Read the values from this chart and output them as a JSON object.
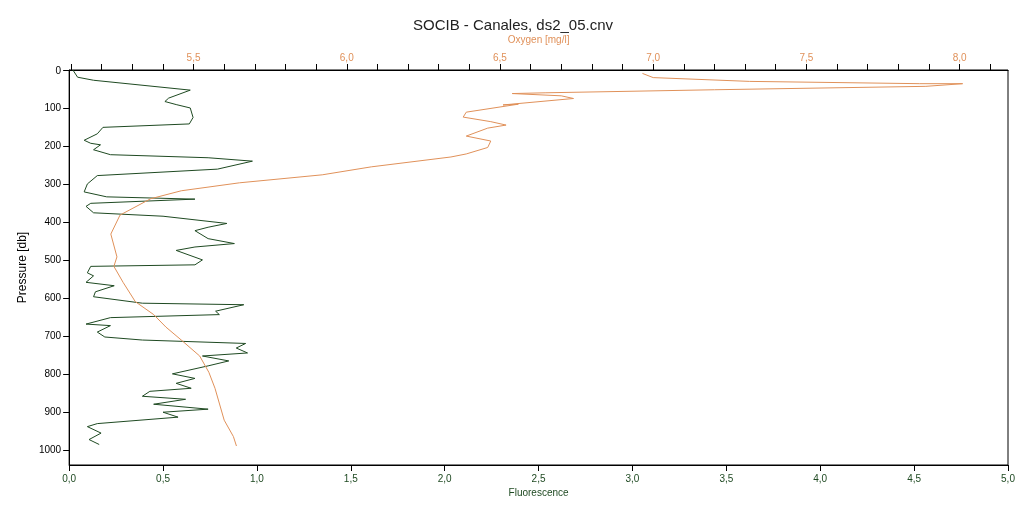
{
  "chart_data": {
    "type": "line",
    "title": "SOCIB - Canales, ds2_05.cnv",
    "xlabel": "Fluorescence",
    "x2label": "Oxygen [mg/l]",
    "ylabel": "Pressure [db]",
    "grid": false,
    "marker": "none",
    "line_style": "solid",
    "xlim": [
      0,
      5
    ],
    "xticks": [
      {
        "value": 0,
        "label": "0,0"
      },
      {
        "value": 0.5,
        "label": "0,5"
      },
      {
        "value": 1,
        "label": "1,0"
      },
      {
        "value": 1.5,
        "label": "1,5"
      },
      {
        "value": 2,
        "label": "2,0"
      },
      {
        "value": 2.5,
        "label": "2,5"
      },
      {
        "value": 3,
        "label": "3,0"
      },
      {
        "value": 3.5,
        "label": "3,5"
      },
      {
        "value": 4,
        "label": "4,0"
      },
      {
        "value": 4.5,
        "label": "4,5"
      },
      {
        "value": 5,
        "label": "5,0"
      }
    ],
    "x2lim": [
      5.094,
      8.158
    ],
    "x2ticks": [
      {
        "value": 5.1,
        "label": null
      },
      {
        "value": 5.2,
        "label": null
      },
      {
        "value": 5.3,
        "label": null
      },
      {
        "value": 5.4,
        "label": null
      },
      {
        "value": 5.5,
        "label": "5,5"
      },
      {
        "value": 5.6,
        "label": null
      },
      {
        "value": 5.7,
        "label": null
      },
      {
        "value": 5.8,
        "label": null
      },
      {
        "value": 5.9,
        "label": null
      },
      {
        "value": 6,
        "label": "6,0"
      },
      {
        "value": 6.1,
        "label": null
      },
      {
        "value": 6.2,
        "label": null
      },
      {
        "value": 6.3,
        "label": null
      },
      {
        "value": 6.4,
        "label": null
      },
      {
        "value": 6.5,
        "label": "6,5"
      },
      {
        "value": 6.6,
        "label": null
      },
      {
        "value": 6.7,
        "label": null
      },
      {
        "value": 6.8,
        "label": null
      },
      {
        "value": 6.9,
        "label": null
      },
      {
        "value": 7,
        "label": "7,0"
      },
      {
        "value": 7.1,
        "label": null
      },
      {
        "value": 7.2,
        "label": null
      },
      {
        "value": 7.3,
        "label": null
      },
      {
        "value": 7.4,
        "label": null
      },
      {
        "value": 7.5,
        "label": "7,5"
      },
      {
        "value": 7.6,
        "label": null
      },
      {
        "value": 7.7,
        "label": null
      },
      {
        "value": 7.8,
        "label": null
      },
      {
        "value": 7.9,
        "label": null
      },
      {
        "value": 8,
        "label": "8,0"
      },
      {
        "value": 8.1,
        "label": null
      }
    ],
    "ylim": [
      1040,
      0
    ],
    "yticks": [
      0,
      100,
      200,
      300,
      400,
      500,
      600,
      700,
      800,
      900,
      1000
    ],
    "series": [
      {
        "color": "#1f4a22",
        "x": [
          0.02,
          0.045,
          0.13,
          0.645,
          0.53,
          0.51,
          0.57,
          0.645,
          0.66,
          0.64,
          0.18,
          0.15,
          0.08,
          0.115,
          0.167,
          0.13,
          0.22,
          0.74,
          0.976,
          0.79,
          0.15,
          0.097,
          0.08,
          0.2,
          0.67,
          0.115,
          0.09,
          0.13,
          0.5,
          0.84,
          0.74,
          0.67,
          0.74,
          0.88,
          0.67,
          0.57,
          0.71,
          0.67,
          0.115,
          0.097,
          0.13,
          0.09,
          0.24,
          0.14,
          0.13,
          0.39,
          0.93,
          0.78,
          0.8,
          0.22,
          0.09,
          0.22,
          0.15,
          0.19,
          0.39,
          0.94,
          0.89,
          0.95,
          0.71,
          0.85,
          0.74,
          0.55,
          0.67,
          0.57,
          0.65,
          0.43,
          0.39,
          0.62,
          0.45,
          0.74,
          0.5,
          0.58,
          0.15,
          0.097,
          0.17,
          0.106,
          0.16
        ],
        "values": [
          0,
          19,
          27,
          53,
          74,
          83,
          91,
          100,
          125,
          142,
          151,
          168,
          185,
          193,
          197,
          210,
          223,
          231,
          240,
          261,
          278,
          300,
          321,
          334,
          340,
          351,
          359,
          376,
          385,
          404,
          414,
          423,
          444,
          457,
          466,
          475,
          500,
          513,
          517,
          534,
          542,
          559,
          568,
          584,
          597,
          614,
          618,
          635,
          644,
          652,
          669,
          673,
          690,
          703,
          711,
          720,
          732,
          745,
          753,
          766,
          779,
          800,
          812,
          825,
          838,
          846,
          859,
          867,
          880,
          893,
          901,
          914,
          931,
          939,
          956,
          973,
          986
        ]
      },
      {
        "color": "#e0915a",
        "axis": "x2",
        "x": [
          6.965,
          7.0,
          7.315,
          7.87,
          8.01,
          7.89,
          7.2,
          6.65,
          6.54,
          6.7,
          6.74,
          6.51,
          6.56,
          6.39,
          6.38,
          6.47,
          6.52,
          6.46,
          6.39,
          6.47,
          6.46,
          6.39,
          6.34,
          6.08,
          5.92,
          5.65,
          5.46,
          5.36,
          5.26,
          5.23,
          5.25,
          5.24,
          5.27,
          5.31,
          5.37,
          5.41,
          5.46,
          5.52,
          5.55,
          5.57,
          5.6,
          5.63,
          5.64
        ],
        "values": [
          9,
          20,
          30,
          36,
          36,
          43,
          52,
          60,
          62,
          68,
          75,
          92,
          90,
          111,
          124,
          136,
          145,
          153,
          174,
          187,
          204,
          221,
          229,
          255,
          276,
          297,
          318,
          339,
          382,
          432,
          492,
          517,
          559,
          610,
          644,
          677,
          711,
          753,
          796,
          838,
          922,
          965,
          990
        ]
      }
    ]
  }
}
